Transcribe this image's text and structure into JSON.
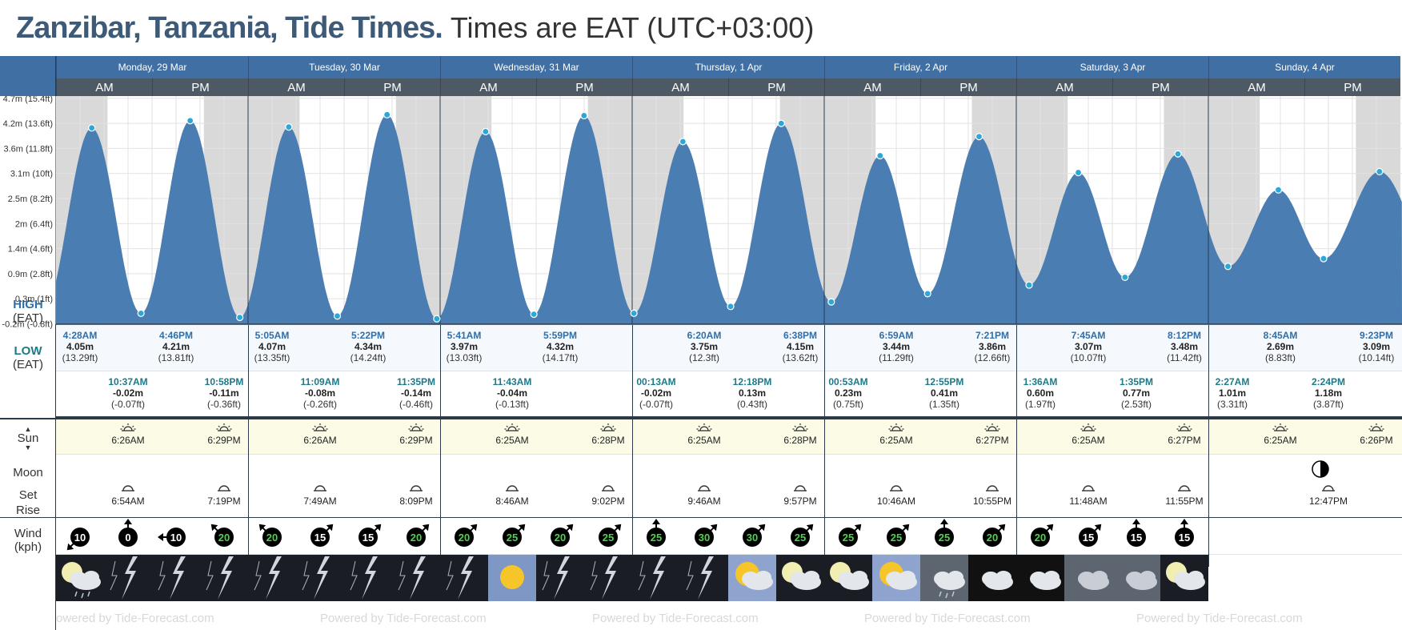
{
  "title": {
    "place": "Zanzibar, Tanzania, Tide Times.",
    "tz": "Times are EAT (UTC+03:00)"
  },
  "days": [
    "Monday, 29 Mar",
    "Tuesday, 30 Mar",
    "Wednesday, 31 Mar",
    "Thursday, 1 Apr",
    "Friday, 2 Apr",
    "Saturday, 3 Apr",
    "Sunday, 4 Apr"
  ],
  "ampm": [
    "AM",
    "PM"
  ],
  "row_labels": {
    "high": "HIGH",
    "high_sub": "(EAT)",
    "low": "LOW",
    "low_sub": "(EAT)",
    "sun": "Sun",
    "moon": "Moon",
    "set": "Set",
    "rise": "Rise",
    "wind": "Wind",
    "wind_unit": "(kph)"
  },
  "powered_by": "Powered by Tide-Forecast.com",
  "chart_data": {
    "type": "area",
    "title": "Zanzibar, Tanzania, Tide Times.",
    "xlabel": "",
    "ylabel": "",
    "y_ticks": [
      "4.7m (15.4ft)",
      "4.2m (13.6ft)",
      "3.6m (11.8ft)",
      "3.1m (10ft)",
      "2.5m (8.2ft)",
      "2m (6.4ft)",
      "1.4m (4.6ft)",
      "0.9m (2.8ft)",
      "0.3m (1ft)",
      "-0.2m (-0.8ft)"
    ],
    "y_tick_values": [
      4.7,
      4.15,
      3.6,
      3.05,
      2.5,
      1.95,
      1.4,
      0.85,
      0.3,
      -0.25
    ],
    "ylim": [
      -0.26,
      4.75
    ],
    "grid": true,
    "colors": {
      "tide": "#4a7db1",
      "night": "#d9d9d9",
      "point": "#2aa8d8"
    },
    "points": [
      {
        "day": 0,
        "time": "4:28AM",
        "type": "high",
        "m": "4.05m",
        "ft": "(13.29ft)",
        "value": 4.05
      },
      {
        "day": 0,
        "time": "10:37AM",
        "type": "low",
        "m": "-0.02m",
        "ft": "(-0.07ft)",
        "value": -0.02
      },
      {
        "day": 0,
        "time": "4:46PM",
        "type": "high",
        "m": "4.21m",
        "ft": "(13.81ft)",
        "value": 4.21
      },
      {
        "day": 0,
        "time": "10:58PM",
        "type": "low",
        "m": "-0.11m",
        "ft": "(-0.36ft)",
        "value": -0.11
      },
      {
        "day": 1,
        "time": "5:05AM",
        "type": "high",
        "m": "4.07m",
        "ft": "(13.35ft)",
        "value": 4.07
      },
      {
        "day": 1,
        "time": "11:09AM",
        "type": "low",
        "m": "-0.08m",
        "ft": "(-0.26ft)",
        "value": -0.08
      },
      {
        "day": 1,
        "time": "5:22PM",
        "type": "high",
        "m": "4.34m",
        "ft": "(14.24ft)",
        "value": 4.34
      },
      {
        "day": 1,
        "time": "11:35PM",
        "type": "low",
        "m": "-0.14m",
        "ft": "(-0.46ft)",
        "value": -0.14
      },
      {
        "day": 2,
        "time": "5:41AM",
        "type": "high",
        "m": "3.97m",
        "ft": "(13.03ft)",
        "value": 3.97
      },
      {
        "day": 2,
        "time": "11:43AM",
        "type": "low",
        "m": "-0.04m",
        "ft": "(-0.13ft)",
        "value": -0.04
      },
      {
        "day": 2,
        "time": "5:59PM",
        "type": "high",
        "m": "4.32m",
        "ft": "(14.17ft)",
        "value": 4.32
      },
      {
        "day": 3,
        "time": "00:13AM",
        "type": "low",
        "m": "-0.02m",
        "ft": "(-0.07ft)",
        "value": -0.02
      },
      {
        "day": 3,
        "time": "6:20AM",
        "type": "high",
        "m": "3.75m",
        "ft": "(12.3ft)",
        "value": 3.75
      },
      {
        "day": 3,
        "time": "12:18PM",
        "type": "low",
        "m": "0.13m",
        "ft": "(0.43ft)",
        "value": 0.13
      },
      {
        "day": 3,
        "time": "6:38PM",
        "type": "high",
        "m": "4.15m",
        "ft": "(13.62ft)",
        "value": 4.15
      },
      {
        "day": 4,
        "time": "00:53AM",
        "type": "low",
        "m": "0.23m",
        "ft": "(0.75ft)",
        "value": 0.23
      },
      {
        "day": 4,
        "time": "6:59AM",
        "type": "high",
        "m": "3.44m",
        "ft": "(11.29ft)",
        "value": 3.44
      },
      {
        "day": 4,
        "time": "12:55PM",
        "type": "low",
        "m": "0.41m",
        "ft": "(1.35ft)",
        "value": 0.41
      },
      {
        "day": 4,
        "time": "7:21PM",
        "type": "high",
        "m": "3.86m",
        "ft": "(12.66ft)",
        "value": 3.86
      },
      {
        "day": 5,
        "time": "1:36AM",
        "type": "low",
        "m": "0.60m",
        "ft": "(1.97ft)",
        "value": 0.6
      },
      {
        "day": 5,
        "time": "7:45AM",
        "type": "high",
        "m": "3.07m",
        "ft": "(10.07ft)",
        "value": 3.07
      },
      {
        "day": 5,
        "time": "1:35PM",
        "type": "low",
        "m": "0.77m",
        "ft": "(2.53ft)",
        "value": 0.77
      },
      {
        "day": 5,
        "time": "8:12PM",
        "type": "high",
        "m": "3.48m",
        "ft": "(11.42ft)",
        "value": 3.48
      },
      {
        "day": 6,
        "time": "2:27AM",
        "type": "low",
        "m": "1.01m",
        "ft": "(3.31ft)",
        "value": 1.01
      },
      {
        "day": 6,
        "time": "8:45AM",
        "type": "high",
        "m": "2.69m",
        "ft": "(8.83ft)",
        "value": 2.69
      },
      {
        "day": 6,
        "time": "2:24PM",
        "type": "low",
        "m": "1.18m",
        "ft": "(3.87ft)",
        "value": 1.18
      },
      {
        "day": 6,
        "time": "9:23PM",
        "type": "high",
        "m": "3.09m",
        "ft": "(10.14ft)",
        "value": 3.09
      }
    ]
  },
  "sun": [
    {
      "day": 0,
      "rise": "6:26AM",
      "set": "6:29PM"
    },
    {
      "day": 1,
      "rise": "6:26AM",
      "set": "6:29PM"
    },
    {
      "day": 2,
      "rise": "6:25AM",
      "set": "6:28PM"
    },
    {
      "day": 3,
      "rise": "6:25AM",
      "set": "6:28PM"
    },
    {
      "day": 4,
      "rise": "6:25AM",
      "set": "6:27PM"
    },
    {
      "day": 5,
      "rise": "6:25AM",
      "set": "6:27PM"
    },
    {
      "day": 6,
      "rise": "6:25AM",
      "set": "6:26PM"
    }
  ],
  "moonset": [
    {
      "day": 0,
      "time": "6:54AM"
    },
    {
      "day": 0,
      "time": "7:19PM"
    },
    {
      "day": 1,
      "time": "7:49AM"
    },
    {
      "day": 1,
      "time": "8:09PM"
    },
    {
      "day": 2,
      "time": "8:46AM"
    },
    {
      "day": 2,
      "time": "9:02PM"
    },
    {
      "day": 3,
      "time": "9:46AM"
    },
    {
      "day": 3,
      "time": "9:57PM"
    },
    {
      "day": 4,
      "time": "10:46AM"
    },
    {
      "day": 4,
      "time": "10:55PM"
    },
    {
      "day": 5,
      "time": "11:48AM"
    },
    {
      "day": 5,
      "time": "11:55PM"
    },
    {
      "day": 6,
      "time": "12:47PM"
    }
  ],
  "moon_phase_icon": "half-moon-icon",
  "wind": [
    {
      "speed": "10",
      "dir": "sw"
    },
    {
      "speed": "0",
      "dir": "n"
    },
    {
      "speed": "10",
      "dir": "w"
    },
    {
      "speed": "20",
      "dir": "nw"
    },
    {
      "speed": "20",
      "dir": "nw"
    },
    {
      "speed": "15",
      "dir": "ne"
    },
    {
      "speed": "15",
      "dir": "ne"
    },
    {
      "speed": "20",
      "dir": "ne"
    },
    {
      "speed": "20",
      "dir": "ne"
    },
    {
      "speed": "25",
      "dir": "ne"
    },
    {
      "speed": "20",
      "dir": "ne"
    },
    {
      "speed": "25",
      "dir": "ne"
    },
    {
      "speed": "25",
      "dir": "n"
    },
    {
      "speed": "30",
      "dir": "ne"
    },
    {
      "speed": "30",
      "dir": "ne"
    },
    {
      "speed": "25",
      "dir": "ne"
    },
    {
      "speed": "25",
      "dir": "ne"
    },
    {
      "speed": "25",
      "dir": "ne"
    },
    {
      "speed": "25",
      "dir": "n"
    },
    {
      "speed": "20",
      "dir": "ne"
    },
    {
      "speed": "20",
      "dir": "ne"
    },
    {
      "speed": "15",
      "dir": "ne"
    },
    {
      "speed": "15",
      "dir": "n"
    },
    {
      "speed": "15",
      "dir": "n"
    }
  ],
  "weather": [
    "moon-cloud-rain-icon",
    "lightning-icon",
    "lightning-icon",
    "lightning-icon",
    "lightning-icon",
    "lightning-icon",
    "lightning-icon",
    "lightning-icon",
    "lightning-icon",
    "sun-icon",
    "lightning-icon",
    "lightning-icon",
    "lightning-icon",
    "lightning-icon",
    "sun-cloud-icon",
    "moon-cloud-icon",
    "moon-cloud-icon",
    "sun-cloud-icon",
    "cloud-rain-icon",
    "cloud-icon",
    "cloud-icon",
    "cloud-overcast-icon",
    "cloud-overcast-icon",
    "moon-cloud-icon"
  ]
}
